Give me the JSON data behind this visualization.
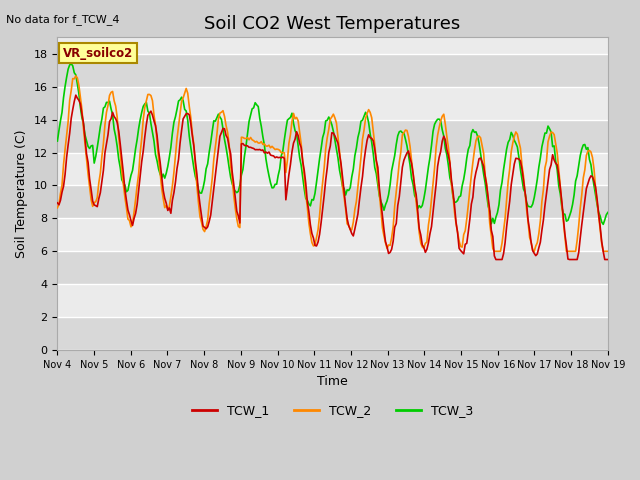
{
  "title": "Soil CO2 West Temperatures",
  "xlabel": "Time",
  "ylabel": "Soil Temperature (C)",
  "top_left_text": "No data for f_TCW_4",
  "annotation_text": "VR_soilco2",
  "ylim": [
    0,
    19
  ],
  "yticks": [
    0,
    2,
    4,
    6,
    8,
    10,
    12,
    14,
    16,
    18
  ],
  "xtick_labels": [
    "Nov 4",
    "Nov 5",
    "Nov 6",
    "Nov 7",
    "Nov 8",
    "Nov 9",
    "Nov 10",
    "Nov 11",
    "Nov 12",
    "Nov 13",
    "Nov 14",
    "Nov 15",
    "Nov 16",
    "Nov 17",
    "Nov 18",
    "Nov 19"
  ],
  "legend_labels": [
    "TCW_1",
    "TCW_2",
    "TCW_3"
  ],
  "line_colors": [
    "#cc0000",
    "#ff8800",
    "#00cc00"
  ],
  "title_fontsize": 13,
  "label_fontsize": 9,
  "tick_fontsize": 8
}
